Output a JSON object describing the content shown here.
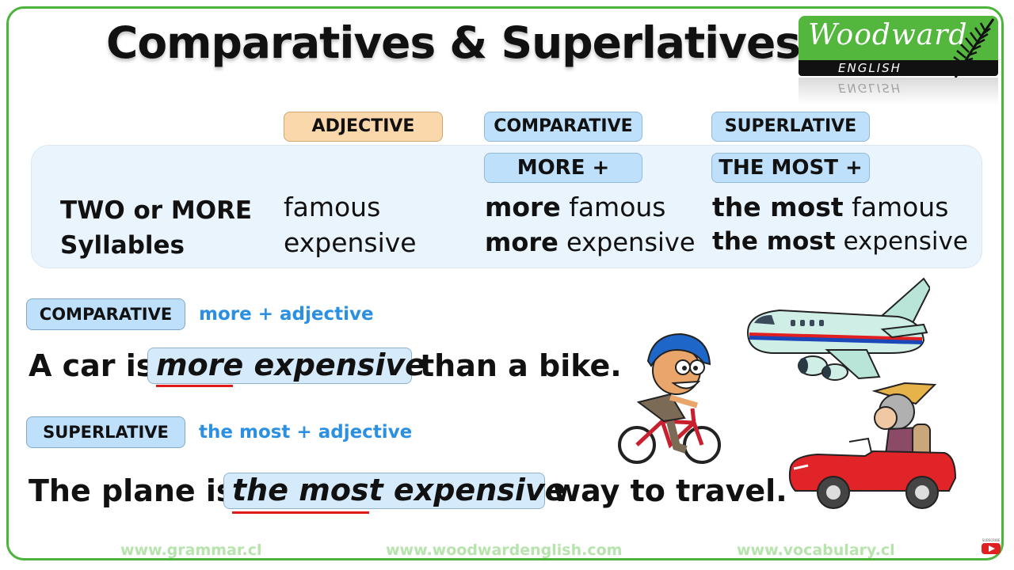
{
  "title": "Comparatives & Superlatives",
  "logo": {
    "brand": "Woodward",
    "sub": "ENGLISH",
    "reflection": "ENGLISH"
  },
  "headers": {
    "adjective": "ADJECTIVE",
    "comparative": "COMPARATIVE",
    "superlative": "SUPERLATIVE",
    "comparative_rule": "MORE +",
    "superlative_rule": "THE MOST +"
  },
  "table": {
    "row_label_line1": "TWO or MORE",
    "row_label_line2": "Syllables",
    "rows": [
      {
        "adjective": "famous",
        "comp_prefix": "more",
        "comp_word": "famous",
        "sup_prefix": "the most",
        "sup_word": "famous"
      },
      {
        "adjective": "expensive",
        "comp_prefix": "more",
        "comp_word": "expensive",
        "sup_prefix": "the most",
        "sup_word": "expensive"
      }
    ]
  },
  "examples": {
    "comparative": {
      "tag": "COMPARATIVE",
      "formula": "more + adjective",
      "before": "A car is",
      "highlight": "more expensive",
      "after": "than a bike."
    },
    "superlative": {
      "tag": "SUPERLATIVE",
      "formula": "the most + adjective",
      "before": "The plane is",
      "highlight": "the most expensive",
      "after": "way to travel."
    }
  },
  "footer": {
    "left": "www.grammar.cl",
    "center": "www.woodwardenglish.com",
    "right": "www.vocabulary.cl"
  },
  "subscribe": "SUBSCRIBE",
  "colors": {
    "accent_green": "#4cb43c",
    "tag_blue": "#bfe0fb",
    "formula_blue": "#2b8fe2",
    "underline_red": "#e01919"
  }
}
